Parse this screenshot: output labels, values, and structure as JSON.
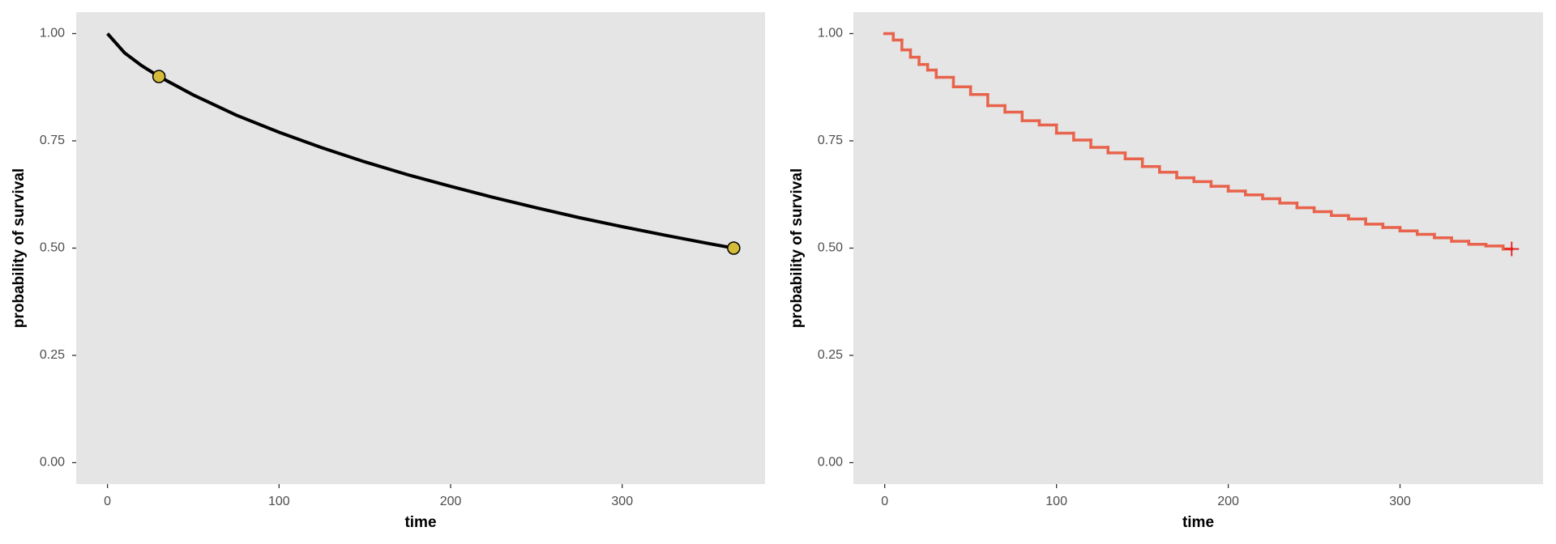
{
  "chart_data": [
    {
      "type": "line",
      "xlabel": "time",
      "ylabel": "probability of survival",
      "x": [
        0,
        10,
        20,
        30,
        50,
        75,
        100,
        125,
        150,
        175,
        200,
        225,
        250,
        275,
        300,
        325,
        350,
        365
      ],
      "values": [
        1.0,
        0.955,
        0.925,
        0.9,
        0.857,
        0.81,
        0.77,
        0.734,
        0.701,
        0.671,
        0.644,
        0.618,
        0.594,
        0.571,
        0.55,
        0.53,
        0.511,
        0.5
      ],
      "color": "#000000",
      "points": {
        "x": [
          30,
          365
        ],
        "values": [
          0.9,
          0.5
        ],
        "color": "#d4bc3a"
      },
      "xlim": [
        -18.25,
        383.25
      ],
      "ylim": [
        -0.05,
        1.05
      ],
      "xticks": [
        0,
        100,
        200,
        300
      ],
      "yticks": [
        {
          "value": 0,
          "label": "0.00"
        },
        0.25,
        {
          "value": 0.5,
          "label": "0.50"
        },
        0.75,
        {
          "value": 1,
          "label": "1.00"
        }
      ],
      "grid": false
    },
    {
      "type": "step",
      "xlabel": "time",
      "ylabel": "probability of survival",
      "x": [
        0,
        5,
        10,
        15,
        20,
        25,
        30,
        40,
        50,
        60,
        70,
        80,
        90,
        100,
        110,
        120,
        130,
        140,
        150,
        160,
        170,
        180,
        190,
        200,
        210,
        220,
        230,
        240,
        250,
        260,
        270,
        280,
        290,
        300,
        310,
        320,
        330,
        340,
        350,
        360,
        365
      ],
      "values": [
        1.0,
        0.985,
        0.962,
        0.945,
        0.928,
        0.915,
        0.898,
        0.876,
        0.858,
        0.832,
        0.817,
        0.797,
        0.787,
        0.768,
        0.752,
        0.735,
        0.722,
        0.708,
        0.69,
        0.677,
        0.664,
        0.655,
        0.644,
        0.633,
        0.624,
        0.615,
        0.605,
        0.594,
        0.585,
        0.576,
        0.568,
        0.556,
        0.548,
        0.54,
        0.532,
        0.524,
        0.516,
        0.509,
        0.505,
        0.498,
        0.498
      ],
      "color": "#e8634b",
      "censor": {
        "x": 365,
        "value": 0.498,
        "color": "#e41a1c"
      },
      "xlim": [
        -18.25,
        383.25
      ],
      "ylim": [
        -0.05,
        1.05
      ],
      "xticks": [
        0,
        100,
        200,
        300
      ],
      "yticks": [
        {
          "value": 0,
          "label": "0.00"
        },
        0.25,
        {
          "value": 0.5,
          "label": "0.50"
        },
        0.75,
        {
          "value": 1,
          "label": "1.00"
        }
      ],
      "grid": false
    }
  ]
}
